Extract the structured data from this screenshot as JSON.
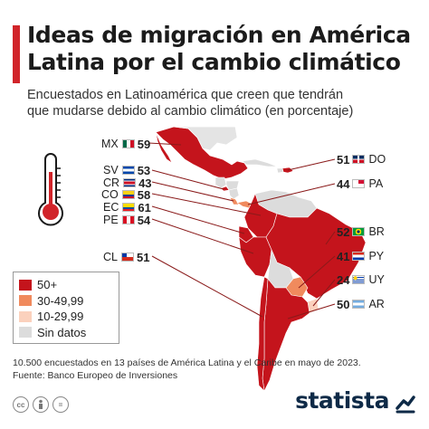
{
  "title_line1": "Ideas de migración en América",
  "title_line2": "Latina por el cambio climático",
  "subtitle_line1": "Encuestados en Latinoamérica que creen que tendrán",
  "subtitle_line2": "que mudarse debido al cambio climático (en porcentaje)",
  "countries": [
    {
      "code": "MX",
      "value": "59",
      "side": "left",
      "flag": "mexico"
    },
    {
      "code": "SV",
      "value": "53",
      "side": "left",
      "flag": "el-salvador"
    },
    {
      "code": "CR",
      "value": "43",
      "side": "left",
      "flag": "costa-rica"
    },
    {
      "code": "CO",
      "value": "58",
      "side": "left",
      "flag": "colombia"
    },
    {
      "code": "EC",
      "value": "61",
      "side": "left",
      "flag": "ecuador"
    },
    {
      "code": "PE",
      "value": "54",
      "side": "left",
      "flag": "peru"
    },
    {
      "code": "CL",
      "value": "51",
      "side": "left",
      "flag": "chile"
    },
    {
      "code": "DO",
      "value": "51",
      "side": "right",
      "flag": "dominican-republic"
    },
    {
      "code": "PA",
      "value": "44",
      "side": "right",
      "flag": "panama"
    },
    {
      "code": "BR",
      "value": "52",
      "side": "right",
      "flag": "brazil"
    },
    {
      "code": "PY",
      "value": "41",
      "side": "right",
      "flag": "paraguay"
    },
    {
      "code": "UY",
      "value": "24",
      "side": "right",
      "flag": "uruguay"
    },
    {
      "code": "AR",
      "value": "50",
      "side": "right",
      "flag": "argentina"
    }
  ],
  "legend": [
    {
      "label": "50+",
      "color": "#c4141c"
    },
    {
      "label": "30-49,99",
      "color": "#f08a5d"
    },
    {
      "label": "10-29,99",
      "color": "#fbd1bd"
    },
    {
      "label": "Sin datos",
      "color": "#dcdcdc"
    }
  ],
  "colors": {
    "accent": "#d1242a",
    "high": "#c4141c",
    "mid": "#f08a5d",
    "low": "#fbd1bd",
    "none": "#dcdcdc",
    "brand": "#0e2a47"
  },
  "footnote_line1": "10.500 encuestados en 13 países de América Latina y el Caribe en mayo de 2023.",
  "footnote_line2": "Fuente: Banco Europeo de Inversiones",
  "brand": "statista",
  "icons": [
    "thermometer-icon",
    "creative-commons-icon",
    "attribution-icon",
    "equals-icon",
    "statista-logo-icon"
  ]
}
